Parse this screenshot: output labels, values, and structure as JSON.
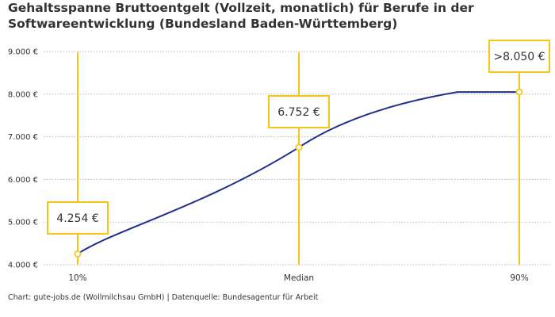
{
  "chart_data": {
    "type": "line",
    "title_line1": "Gehaltsspanne Bruttoentgelt (Vollzeit, monatlich) für Berufe in der",
    "title_line2": "Softwareentwicklung (Bundesland Baden-Württemberg)",
    "categories": [
      "10%",
      "Median",
      "90%"
    ],
    "values": [
      4254,
      6752,
      8050
    ],
    "value_labels": [
      "4.254 €",
      "6.752 €",
      ">8.050 €"
    ],
    "ylim": [
      4000,
      9000
    ],
    "yticks": [
      4000,
      5000,
      6000,
      7000,
      8000,
      9000
    ],
    "ytick_labels": [
      "4.000 €",
      "5.000 €",
      "6.000 €",
      "7.000 €",
      "8.000 €",
      "9.000 €"
    ],
    "grid": true,
    "line_color": "#1f2f8a",
    "accent_color": "#f5c518",
    "grid_color": "#b8b8b8"
  },
  "footer": {
    "source": "Chart: gute-jobs.de (Wollmilchsau GmbH) | Datenquelle: Bundesagentur für Arbeit"
  }
}
